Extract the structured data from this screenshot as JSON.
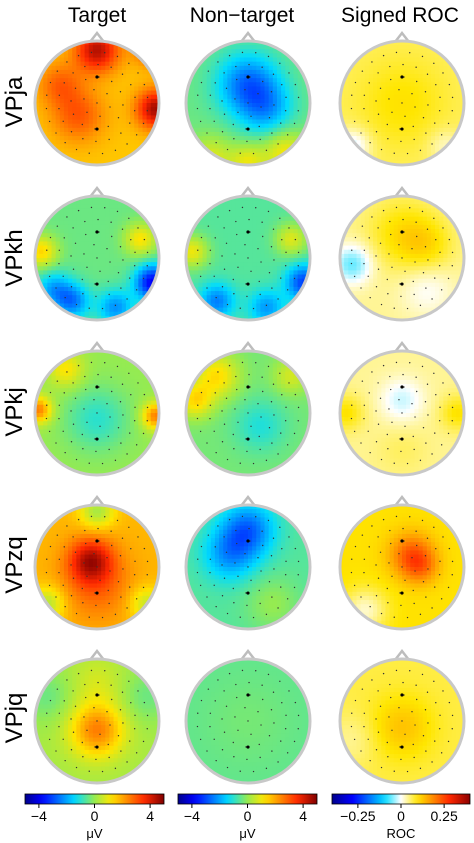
{
  "columns": [
    {
      "title": "Target",
      "colormap": "jet",
      "range": [
        -5,
        5
      ]
    },
    {
      "title": "Non−target",
      "colormap": "jet",
      "range": [
        -5,
        5
      ]
    },
    {
      "title": "Signed ROC",
      "colormap": "roc",
      "range": [
        -0.4,
        0.4
      ]
    }
  ],
  "rows": [
    {
      "label": "VPja",
      "maps": [
        {
          "base": 1.6,
          "blobs": [
            [
              0.0,
              -0.85,
              2.8,
              0.25
            ],
            [
              0.95,
              0.1,
              3.0,
              0.22
            ],
            [
              -0.3,
              0.2,
              1.4,
              0.3
            ],
            [
              -0.6,
              -0.3,
              1.2,
              0.25
            ],
            [
              0.9,
              -0.9,
              2.0,
              0.2
            ]
          ]
        },
        {
          "base": -0.4,
          "blobs": [
            [
              0.0,
              -0.3,
              -2.2,
              0.35
            ],
            [
              0.3,
              0.1,
              -1.4,
              0.3
            ],
            [
              0.6,
              0.8,
              1.5,
              0.25
            ],
            [
              -0.6,
              0.9,
              1.2,
              0.25
            ],
            [
              0.0,
              0.95,
              1.3,
              0.2
            ]
          ]
        },
        {
          "base": 0.06,
          "blobs": [
            [
              0.0,
              0.0,
              0.04,
              0.5
            ],
            [
              -0.8,
              0.7,
              -0.08,
              0.2
            ],
            [
              0.7,
              0.7,
              -0.04,
              0.2
            ]
          ]
        }
      ]
    },
    {
      "label": "VPkh",
      "maps": [
        {
          "base": -0.4,
          "blobs": [
            [
              -0.9,
              -0.1,
              1.8,
              0.18
            ],
            [
              0.7,
              -0.3,
              1.6,
              0.18
            ],
            [
              0.9,
              0.4,
              -3.5,
              0.2
            ],
            [
              -0.4,
              0.7,
              -2.0,
              0.2
            ],
            [
              0.3,
              0.8,
              -1.8,
              0.2
            ],
            [
              -0.7,
              0.5,
              -1.5,
              0.2
            ]
          ]
        },
        {
          "base": -0.6,
          "blobs": [
            [
              -0.9,
              -0.1,
              1.6,
              0.18
            ],
            [
              0.7,
              -0.3,
              1.4,
              0.18
            ],
            [
              0.9,
              0.4,
              -2.5,
              0.2
            ],
            [
              -0.5,
              0.7,
              -1.8,
              0.2
            ],
            [
              0.3,
              0.8,
              -1.5,
              0.2
            ]
          ]
        },
        {
          "base": 0.04,
          "blobs": [
            [
              -0.8,
              0.1,
              -0.1,
              0.22
            ],
            [
              0.4,
              0.5,
              -0.04,
              0.3
            ],
            [
              0.0,
              -0.4,
              0.06,
              0.4
            ],
            [
              0.4,
              -0.2,
              0.05,
              0.3
            ]
          ]
        }
      ]
    },
    {
      "label": "VPkj",
      "maps": [
        {
          "base": 0.0,
          "blobs": [
            [
              -0.95,
              -0.05,
              2.5,
              0.15
            ],
            [
              0.95,
              0.05,
              2.5,
              0.15
            ],
            [
              -0.5,
              -0.7,
              1.2,
              0.2
            ],
            [
              0.0,
              0.1,
              -1.0,
              0.35
            ]
          ]
        },
        {
          "base": -0.3,
          "blobs": [
            [
              -0.85,
              -0.2,
              1.6,
              0.2
            ],
            [
              -0.5,
              -0.6,
              1.6,
              0.25
            ],
            [
              0.7,
              -0.6,
              1.0,
              0.2
            ],
            [
              0.2,
              0.2,
              -0.8,
              0.3
            ]
          ]
        },
        {
          "base": 0.04,
          "blobs": [
            [
              0.0,
              -0.2,
              -0.06,
              0.25
            ],
            [
              -0.9,
              0.0,
              0.06,
              0.2
            ],
            [
              0.9,
              0.0,
              0.06,
              0.2
            ],
            [
              0.0,
              0.6,
              0.02,
              0.3
            ]
          ]
        }
      ]
    },
    {
      "label": "VPzq",
      "maps": [
        {
          "base": 1.8,
          "blobs": [
            [
              -0.1,
              -0.1,
              2.4,
              0.25
            ],
            [
              0.0,
              0.3,
              1.0,
              0.4
            ],
            [
              -0.8,
              0.6,
              -1.5,
              0.2
            ],
            [
              0.8,
              0.6,
              -1.3,
              0.2
            ],
            [
              0.0,
              -0.9,
              -1.6,
              0.2
            ]
          ]
        },
        {
          "base": -0.6,
          "blobs": [
            [
              0.0,
              -0.6,
              -2.0,
              0.3
            ],
            [
              -0.3,
              -0.2,
              -1.5,
              0.3
            ],
            [
              0.4,
              0.6,
              0.6,
              0.3
            ]
          ]
        },
        {
          "base": 0.1,
          "blobs": [
            [
              0.15,
              -0.2,
              0.12,
              0.25
            ],
            [
              0.3,
              0.0,
              0.08,
              0.2
            ],
            [
              -0.6,
              0.7,
              -0.08,
              0.25
            ]
          ]
        }
      ]
    },
    {
      "label": "VPjq",
      "maps": [
        {
          "base": 0.2,
          "blobs": [
            [
              0.0,
              0.15,
              2.3,
              0.3
            ],
            [
              0.0,
              -0.6,
              0.5,
              0.3
            ],
            [
              -0.8,
              -0.4,
              -0.6,
              0.3
            ],
            [
              0.8,
              -0.4,
              -0.6,
              0.3
            ]
          ]
        },
        {
          "base": -0.5,
          "blobs": [
            [
              0.0,
              0.0,
              0.2,
              0.5
            ]
          ]
        },
        {
          "base": 0.07,
          "blobs": [
            [
              0.0,
              0.1,
              0.06,
              0.35
            ],
            [
              -0.8,
              0.3,
              -0.03,
              0.3
            ]
          ]
        }
      ]
    }
  ],
  "colorbars": [
    {
      "ticks": [
        -4,
        0,
        4
      ],
      "tick_labels": [
        "−4",
        "0",
        "4"
      ],
      "range": [
        -5,
        5
      ],
      "unit": "μV",
      "colormap": "jet"
    },
    {
      "ticks": [
        -4,
        0,
        4
      ],
      "tick_labels": [
        "−4",
        "0",
        "4"
      ],
      "range": [
        -5,
        5
      ],
      "unit": "μV",
      "colormap": "jet"
    },
    {
      "ticks": [
        -0.25,
        0,
        0.25
      ],
      "tick_labels": [
        "−0.25",
        "0",
        "0.25"
      ],
      "range": [
        -0.4,
        0.4
      ],
      "unit": "ROC",
      "colormap": "roc"
    }
  ]
}
